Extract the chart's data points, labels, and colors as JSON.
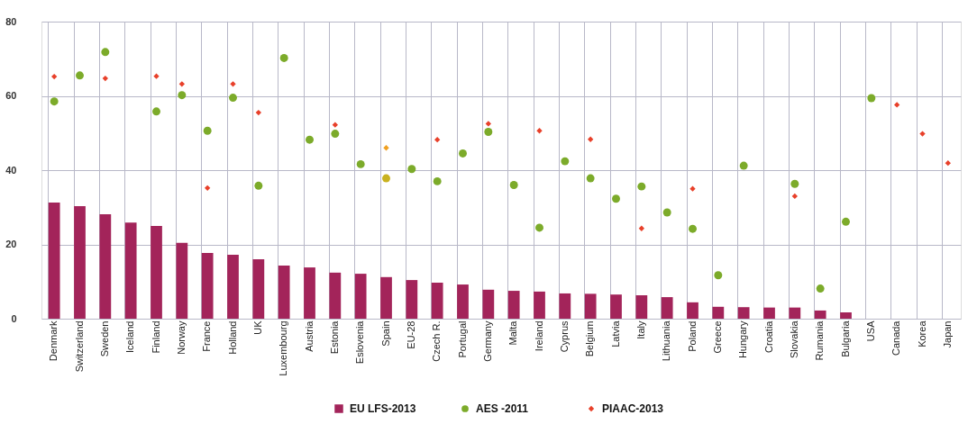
{
  "chart_data": {
    "type": "bar",
    "categories": [
      "Denmark",
      "Switzerland",
      "Sweden",
      "Iceland",
      "Finland",
      "Norway",
      "France",
      "Holland",
      "UK",
      "Luxembourg",
      "Austria",
      "Estonia",
      "Eslovenia",
      "Spain",
      "EU-28",
      "Czech R.",
      "Portugal",
      "Germany",
      "Malta",
      "Ireland",
      "Cyprus",
      "Belgium",
      "Latvia",
      "Italy",
      "Lithuania",
      "Poland",
      "Greece",
      "Hungary",
      "Croatia",
      "Slovakia",
      "Rumania",
      "Bulgaria",
      "USA",
      "Canada",
      "Korea",
      "Japan"
    ],
    "series": [
      {
        "name": "EU LFS-2013",
        "color": "#a3245a",
        "values": [
          31.3,
          30.3,
          28.1,
          25.9,
          25,
          20.4,
          17.7,
          17.2,
          16,
          14.3,
          13.8,
          12.4,
          12.1,
          11.2,
          10.4,
          9.7,
          9.2,
          7.8,
          7.5,
          7.3,
          6.8,
          6.7,
          6.5,
          6.3,
          5.8,
          4.4,
          3.2,
          3.1,
          3,
          3,
          2.2,
          1.7,
          null,
          null,
          null,
          null
        ]
      },
      {
        "name": "AES -2011",
        "type": "scatter",
        "marker": "circle",
        "color": "#7cab2a",
        "colors": [
          "#7cab2a",
          "#7cab2a",
          "#7cab2a",
          "#7cab2a",
          "#7cab2a",
          "#7cab2a",
          "#7cab2a",
          "#7cab2a",
          "#7cab2a",
          "#7cab2a",
          "#7cab2a",
          "#7cab2a",
          "#7cab2a",
          "#c9b21f",
          "#7cab2a",
          "#7cab2a",
          "#7cab2a",
          "#7cab2a",
          "#7cab2a",
          "#7cab2a",
          "#7cab2a",
          "#7cab2a",
          "#7cab2a",
          "#7cab2a",
          "#7cab2a",
          "#7cab2a",
          "#7cab2a",
          "#7cab2a",
          "#7cab2a",
          "#7cab2a",
          "#7cab2a",
          "#7cab2a",
          "#7cab2a",
          "#7cab2a",
          "#7cab2a",
          "#7cab2a"
        ],
        "values": [
          58.5,
          65.5,
          71.8,
          null,
          55.8,
          60.2,
          50.6,
          59.5,
          35.8,
          70.2,
          48.2,
          49.8,
          41.6,
          37.8,
          40.3,
          37.0,
          44.5,
          50.3,
          36.0,
          24.5,
          42.4,
          37.8,
          32.3,
          35.6,
          28.6,
          24.2,
          11.7,
          41.2,
          null,
          36.3,
          8.1,
          26.1,
          59.4,
          null,
          null,
          null
        ]
      },
      {
        "name": "PIAAC-2013",
        "type": "scatter",
        "marker": "diamond",
        "color": "#e8402a",
        "colors": [
          "#e8402a",
          "#e8402a",
          "#e8402a",
          "#e8402a",
          "#e8402a",
          "#e8402a",
          "#e8402a",
          "#e8402a",
          "#e8402a",
          "#e8402a",
          "#e8402a",
          "#e8402a",
          "#e8402a",
          "#f0a020",
          "#e8402a",
          "#e8402a",
          "#e8402a",
          "#e8402a",
          "#e8402a",
          "#e8402a",
          "#e8402a",
          "#e8402a",
          "#e8402a",
          "#e8402a",
          "#e8402a",
          "#e8402a",
          "#e8402a",
          "#e8402a",
          "#e8402a",
          "#e8402a",
          "#e8402a",
          "#e8402a",
          "#e8402a",
          "#e8402a",
          "#e8402a",
          "#e8402a"
        ],
        "values": [
          65.2,
          null,
          64.7,
          null,
          65.3,
          63.2,
          35.2,
          63.2,
          55.5,
          null,
          null,
          52.2,
          null,
          46.0,
          null,
          48.2,
          null,
          52.5,
          null,
          50.6,
          null,
          48.3,
          null,
          24.3,
          null,
          35.0,
          null,
          null,
          null,
          33.0,
          null,
          null,
          null,
          57.6,
          49.8,
          41.9
        ]
      }
    ],
    "ylim": [
      0,
      80
    ],
    "yticks": [
      0,
      20,
      40,
      60,
      80
    ],
    "grid": true,
    "legend": "bottom"
  }
}
